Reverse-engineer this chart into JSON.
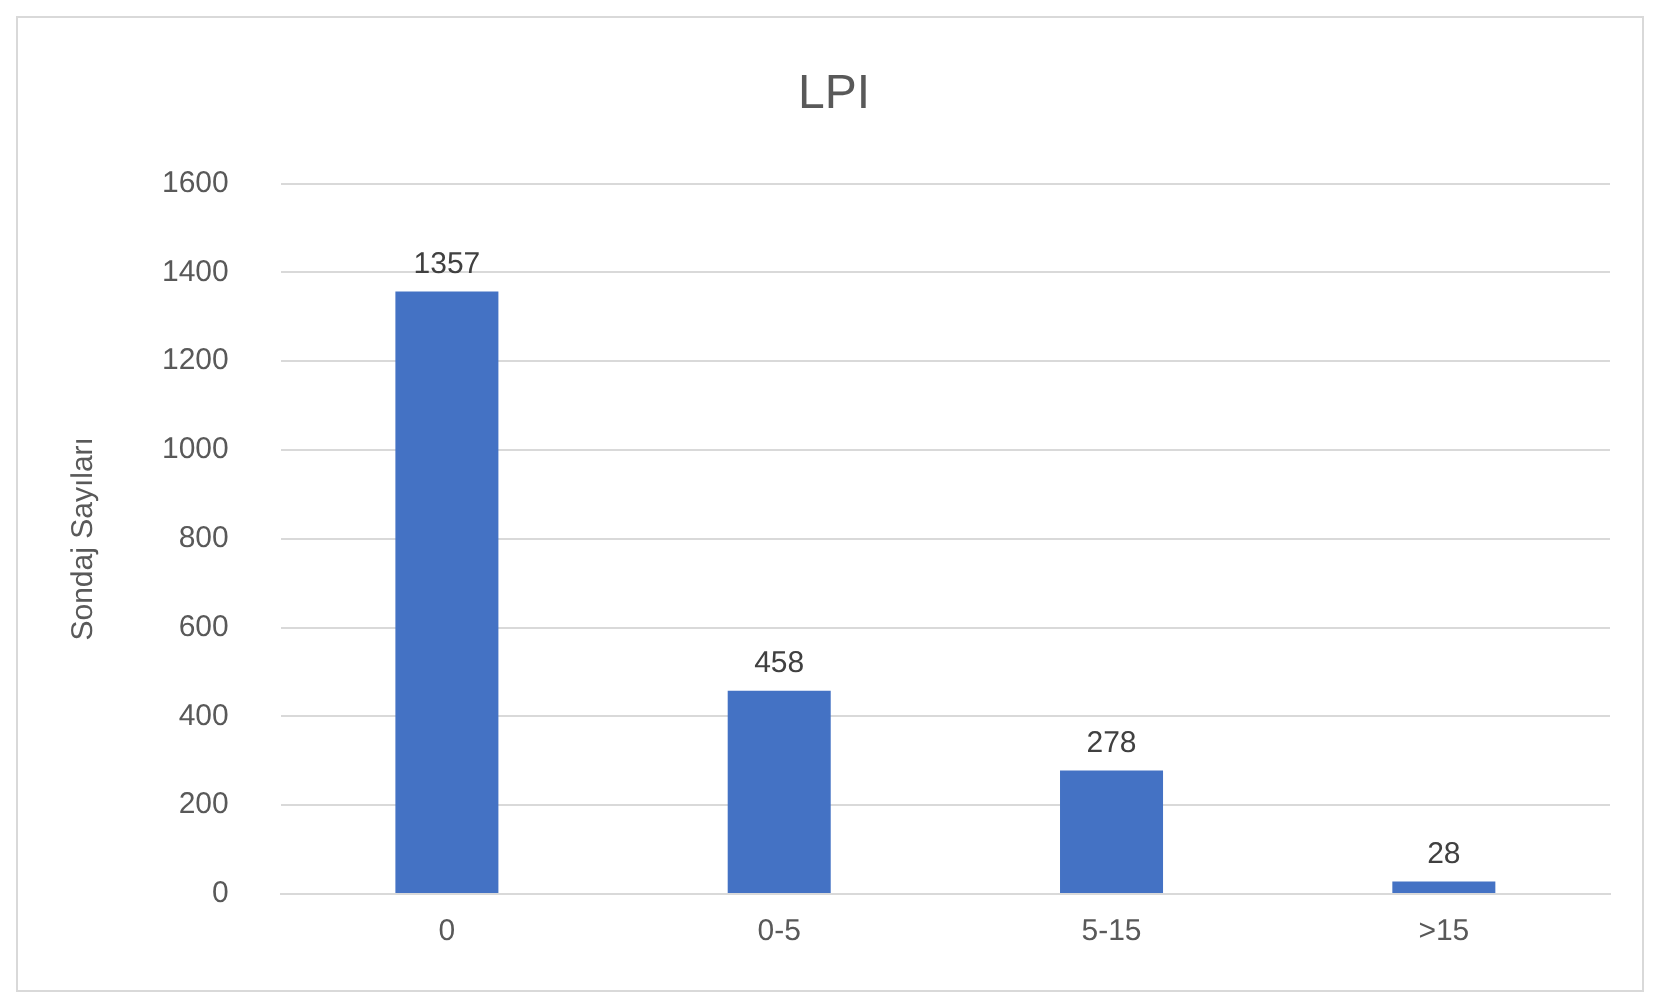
{
  "chart_data": {
    "type": "bar",
    "title": "LPI",
    "ylabel": "Sondaj Sayıları",
    "categories": [
      "0",
      "0-5",
      "5-15",
      ">15"
    ],
    "values": [
      1357,
      458,
      278,
      28
    ],
    "color": "#4472c4",
    "ylim": [
      0,
      1600
    ],
    "yticks": [
      0,
      200,
      400,
      600,
      800,
      1000,
      1200,
      1400,
      1600
    ],
    "grid": "y",
    "data_labels": true,
    "legend": false
  }
}
